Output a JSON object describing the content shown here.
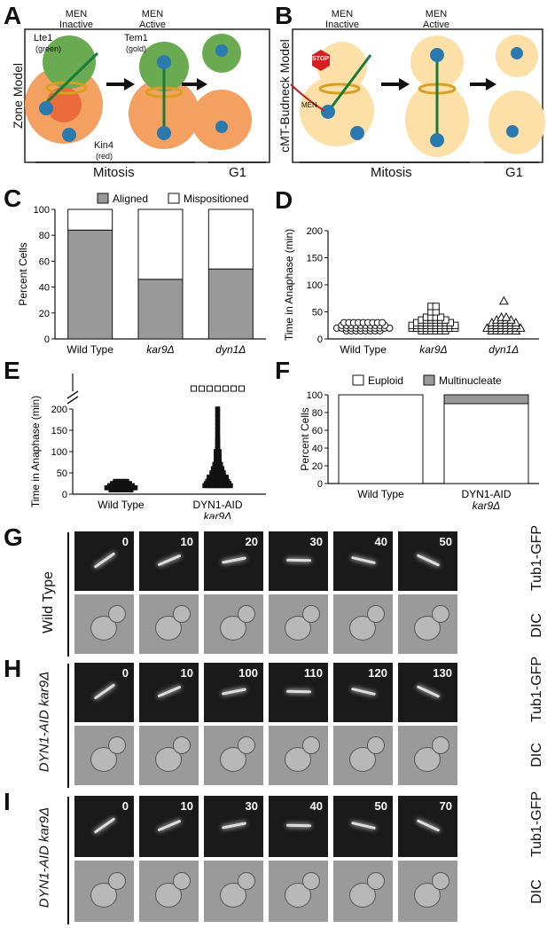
{
  "panels": {
    "A": {
      "label": "A",
      "side_title": "Zone Model",
      "state1": "MEN\nInactive",
      "state2": "MEN\nActive",
      "lte1": "Lte1",
      "lte1_color": "(green)",
      "tem1": "Tem1",
      "tem1_color": "(gold)",
      "kin4": "Kin4",
      "kin4_color": "(red)",
      "mitosis": "Mitosis",
      "g1": "G1"
    },
    "B": {
      "label": "B",
      "side_title": "cMT-Budneck Model",
      "state1": "MEN\nInactive",
      "state2": "MEN\nActive",
      "stop": "STOP",
      "men": "MEN",
      "mitosis": "Mitosis",
      "g1": "G1"
    },
    "C": {
      "label": "C"
    },
    "D": {
      "label": "D"
    },
    "E": {
      "label": "E"
    },
    "F": {
      "label": "F"
    },
    "G": {
      "label": "G",
      "strain": "Wild Type",
      "times": [
        "0",
        "10",
        "20",
        "30",
        "40",
        "50"
      ],
      "row1": "Tub1-GFP",
      "row2": "DIC"
    },
    "H": {
      "label": "H",
      "strain": "DYN1-AID kar9Δ",
      "times": [
        "0",
        "10",
        "100",
        "110",
        "120",
        "130"
      ],
      "row1": "Tub1-GFP",
      "row2": "DIC"
    },
    "I": {
      "label": "I",
      "strain": "DYN1-AID kar9Δ",
      "times": [
        "0",
        "10",
        "30",
        "40",
        "50",
        "70"
      ],
      "row1": "Tub1-GFP",
      "row2": "DIC"
    }
  },
  "chart_data": [
    {
      "panel": "C",
      "type": "bar",
      "stacked": true,
      "categories": [
        "Wild Type",
        "kar9Δ",
        "dyn1Δ"
      ],
      "series": [
        {
          "name": "Aligned",
          "values": [
            84,
            46,
            54
          ],
          "color": "#999999"
        },
        {
          "name": "Mispositioned",
          "values": [
            16,
            54,
            46
          ],
          "color": "#ffffff"
        }
      ],
      "ylabel": "Percent Cells",
      "ylim": [
        0,
        100
      ],
      "yticks": [
        "0",
        "20",
        "40",
        "60",
        "80",
        "100"
      ],
      "legend": "top"
    },
    {
      "panel": "D",
      "type": "scatter",
      "categories": [
        "Wild Type",
        "kar9Δ",
        "dyn1Δ"
      ],
      "markers": [
        "circle",
        "square",
        "triangle"
      ],
      "series": [
        {
          "category": "Wild Type",
          "values": [
            15,
            15,
            15,
            15,
            15,
            15,
            15,
            15,
            20,
            20,
            20,
            20,
            20,
            20,
            20,
            20,
            20,
            20,
            20,
            20,
            25,
            25,
            25,
            25,
            25,
            25,
            25,
            25,
            25,
            25,
            30,
            30,
            30,
            30,
            30,
            30,
            30,
            30,
            30
          ]
        },
        {
          "category": "kar9Δ",
          "values": [
            15,
            15,
            15,
            15,
            15,
            15,
            20,
            20,
            20,
            20,
            20,
            20,
            20,
            20,
            20,
            20,
            25,
            25,
            25,
            25,
            25,
            25,
            25,
            25,
            25,
            25,
            30,
            30,
            30,
            30,
            30,
            30,
            30,
            30,
            35,
            35,
            35,
            35,
            35,
            35,
            40,
            40,
            40,
            40,
            50,
            50,
            60,
            60
          ]
        },
        {
          "category": "dyn1Δ",
          "values": [
            15,
            15,
            15,
            15,
            15,
            15,
            20,
            20,
            20,
            20,
            20,
            20,
            20,
            20,
            25,
            25,
            25,
            25,
            25,
            25,
            30,
            30,
            30,
            30,
            30,
            30,
            35,
            35,
            35,
            35,
            40,
            40,
            70
          ]
        }
      ],
      "ylabel": "Time in Anaphase (min)",
      "ylim": [
        0,
        200
      ],
      "yticks": [
        "0",
        "50",
        "100",
        "150",
        "200"
      ]
    },
    {
      "panel": "E",
      "type": "scatter",
      "categories": [
        "Wild Type",
        "DYN1-AID\nkar9Δ"
      ],
      "markers": [
        "square-filled",
        "square-filled"
      ],
      "series": [
        {
          "category": "Wild Type",
          "values": [
            10,
            10,
            10,
            10,
            10,
            10,
            10,
            10,
            15,
            15,
            15,
            15,
            15,
            15,
            15,
            15,
            15,
            15,
            15,
            20,
            20,
            20,
            20,
            20,
            20,
            20,
            20,
            20,
            25,
            25,
            25,
            25,
            25,
            25,
            25,
            30,
            30,
            30,
            30,
            30
          ]
        },
        {
          "category": "DYN1-AID\nkar9Δ",
          "values": [
            20,
            20,
            20,
            20,
            20,
            20,
            20,
            20,
            20,
            20,
            25,
            25,
            25,
            25,
            25,
            25,
            25,
            25,
            25,
            30,
            30,
            30,
            30,
            30,
            30,
            30,
            30,
            35,
            35,
            35,
            35,
            35,
            35,
            35,
            40,
            40,
            40,
            40,
            40,
            40,
            40,
            45,
            45,
            45,
            45,
            45,
            50,
            50,
            50,
            50,
            50,
            55,
            55,
            55,
            55,
            60,
            60,
            60,
            60,
            65,
            65,
            65,
            70,
            70,
            70,
            75,
            75,
            80,
            80,
            85,
            85,
            90,
            90,
            95,
            100,
            100,
            105,
            110,
            115,
            120,
            125,
            130,
            140,
            150,
            160,
            170,
            180,
            190,
            200
          ]
        },
        {
          "category": "DYN1-AID\nkar9Δ",
          "marker": "square-open",
          "note_values": "off-scale",
          "count": 7
        }
      ],
      "ylabel": "Time in Anaphase (min)",
      "ylim": [
        0,
        200
      ],
      "yticks": [
        "0",
        "50",
        "100",
        "150",
        "200"
      ],
      "axis_break": true
    },
    {
      "panel": "F",
      "type": "bar",
      "stacked": true,
      "categories": [
        "Wild Type",
        "DYN1-AID\nkar9Δ"
      ],
      "series": [
        {
          "name": "Euploid",
          "values": [
            100,
            90
          ],
          "color": "#ffffff"
        },
        {
          "name": "Multinucleate",
          "values": [
            0,
            10
          ],
          "color": "#999999"
        }
      ],
      "ylabel": "Percent Cells",
      "ylim": [
        0,
        100
      ],
      "yticks": [
        "0",
        "20",
        "40",
        "60",
        "80",
        "100"
      ],
      "legend": "top"
    }
  ]
}
